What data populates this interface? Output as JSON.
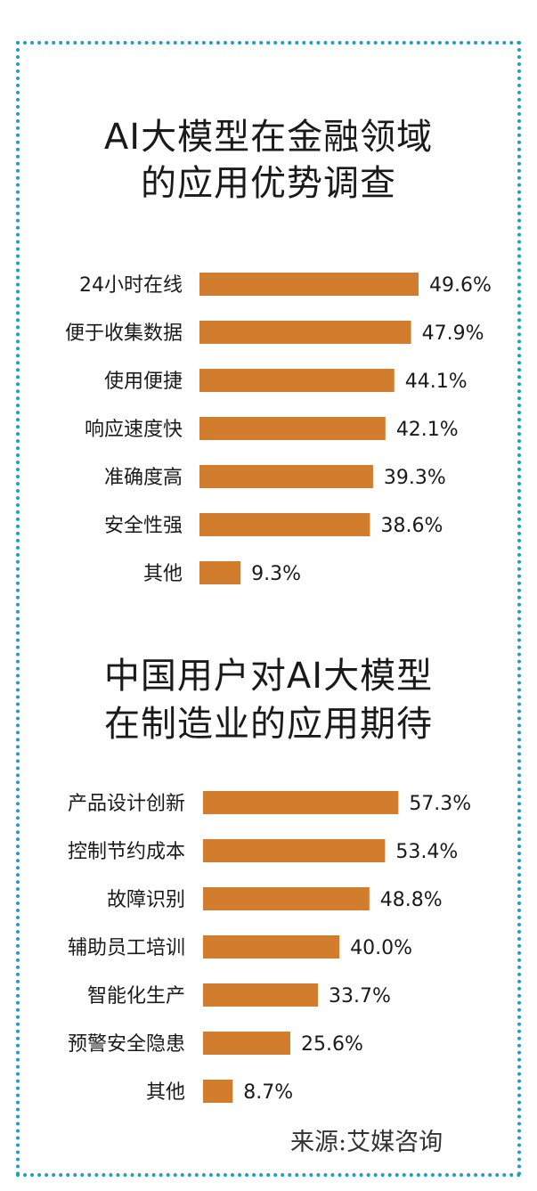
{
  "accent_color": "#d27d2d",
  "border_color": "#1d9fc5",
  "chart_data": [
    {
      "type": "bar",
      "orientation": "horizontal",
      "title_lines": [
        "AI大模型在金融领域",
        "的应用优势调查"
      ],
      "categories": [
        "24小时在线",
        "便于收集数据",
        "使用便捷",
        "响应速度快",
        "准确度高",
        "安全性强",
        "其他"
      ],
      "values": [
        49.6,
        47.9,
        44.1,
        42.1,
        39.3,
        38.6,
        9.3
      ],
      "value_labels": [
        "49.6%",
        "47.9%",
        "44.1%",
        "42.1%",
        "39.3%",
        "38.6%",
        "9.3%"
      ],
      "unit": "%",
      "xlim": [
        0,
        50
      ]
    },
    {
      "type": "bar",
      "orientation": "horizontal",
      "title_lines": [
        "中国用户对AI大模型",
        "在制造业的应用期待"
      ],
      "categories": [
        "产品设计创新",
        "控制节约成本",
        "故障识别",
        "辅助员工培训",
        "智能化生产",
        "预警安全隐患",
        "其他"
      ],
      "values": [
        57.3,
        53.4,
        48.8,
        40.0,
        33.7,
        25.6,
        8.7
      ],
      "value_labels": [
        "57.3%",
        "53.4%",
        "48.8%",
        "40.0%",
        "33.7%",
        "25.6%",
        "8.7%"
      ],
      "unit": "%",
      "xlim": [
        0,
        58
      ]
    }
  ],
  "source": "来源:艾媒咨询"
}
